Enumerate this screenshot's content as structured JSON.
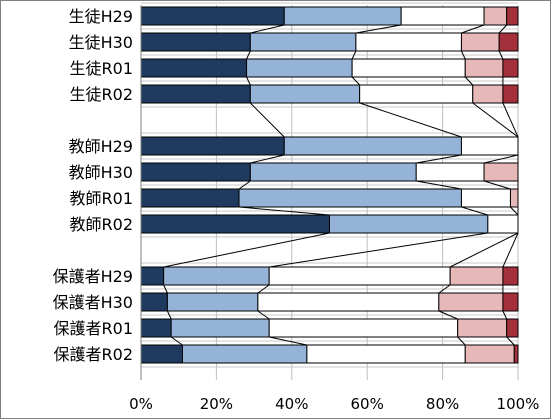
{
  "chart_data": {
    "type": "bar",
    "orientation": "horizontal",
    "stacking": "percent",
    "title": "",
    "xlabel": "",
    "ylabel": "",
    "xlim": [
      0,
      100
    ],
    "x_ticks": [
      "0%",
      "20%",
      "40%",
      "60%",
      "80%",
      "100%"
    ],
    "grid": true,
    "legend": "none",
    "categories": [
      "生徒H29",
      "生徒H30",
      "生徒R01",
      "生徒R02",
      "教師H29",
      "教師H30",
      "教師R01",
      "教師R02",
      "保護者H29",
      "保護者H30",
      "保護者R01",
      "保護者R02"
    ],
    "groups": [
      [
        "生徒H29",
        "生徒H30",
        "生徒R01",
        "生徒R02"
      ],
      [
        "教師H29",
        "教師H30",
        "教師R01",
        "教師R02"
      ],
      [
        "保護者H29",
        "保護者H30",
        "保護者R01",
        "保護者R02"
      ]
    ],
    "series": [
      {
        "values": [
          38,
          29,
          28,
          29,
          38,
          29,
          26,
          50,
          6,
          7,
          8,
          11
        ]
      },
      {
        "values": [
          31,
          28,
          28,
          29,
          47,
          44,
          59,
          42,
          28,
          24,
          26,
          33
        ]
      },
      {
        "values": [
          22,
          28,
          30,
          30,
          15,
          18,
          13,
          8,
          48,
          48,
          50,
          42
        ]
      },
      {
        "values": [
          6,
          10,
          10,
          8,
          0,
          9,
          2,
          0,
          14,
          17,
          13,
          13
        ]
      },
      {
        "values": [
          3,
          5,
          4,
          4,
          0,
          0,
          0,
          0,
          4,
          4,
          3,
          1
        ]
      }
    ],
    "colors": [
      "#1f3a5f",
      "#95b3d7",
      "#ffffff",
      "#e6b9b8",
      "#a3303a"
    ],
    "connector_lines": true
  }
}
